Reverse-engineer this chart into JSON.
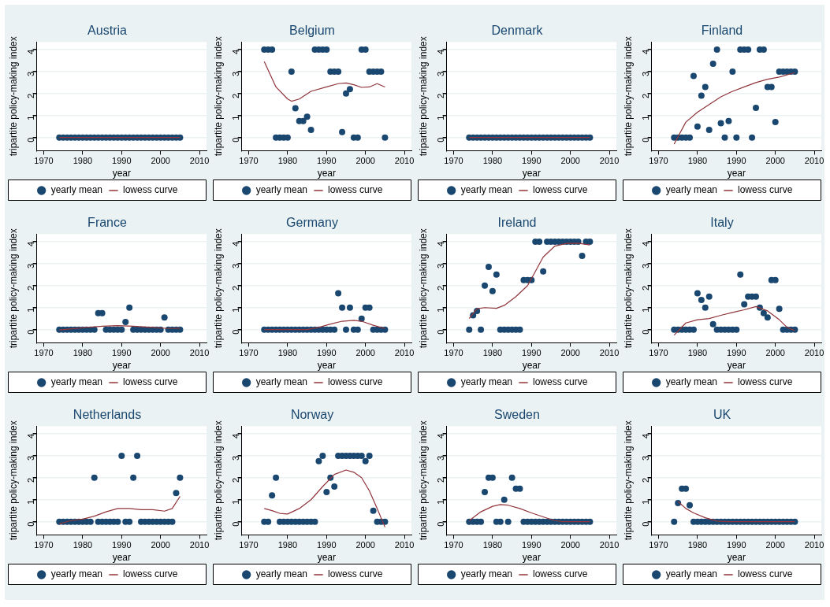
{
  "chart_data": [
    {
      "type": "scatter",
      "title": "Austria",
      "xlabel": "year",
      "ylabel": "tripartite policy-making index",
      "xlim": [
        1968.2,
        2011.8
      ],
      "ylim": [
        -0.6,
        4.35
      ],
      "xticks": [
        1970,
        1980,
        1990,
        2000,
        2010
      ],
      "yticks": [
        0,
        1,
        2,
        3,
        4
      ],
      "grid": "y",
      "legend": "bottom",
      "x": [
        1974,
        1975,
        1976,
        1977,
        1978,
        1979,
        1980,
        1981,
        1982,
        1983,
        1984,
        1985,
        1986,
        1987,
        1988,
        1989,
        1990,
        1991,
        1992,
        1993,
        1994,
        1995,
        1996,
        1997,
        1998,
        1999,
        2000,
        2001,
        2002,
        2003,
        2004,
        2005
      ],
      "series": [
        {
          "name": "yearly mean",
          "type": "scatter",
          "marker": "circle",
          "color": "#1a476f",
          "values": [
            0,
            0,
            0,
            0,
            0,
            0,
            0,
            0,
            0,
            0,
            0,
            0,
            0,
            0,
            0,
            0,
            0,
            0,
            0,
            0,
            0,
            0,
            0,
            0,
            0,
            0,
            0,
            0,
            0,
            0,
            0,
            0
          ]
        },
        {
          "name": "lowess curve",
          "type": "line",
          "marker": "none",
          "color": "#90353b",
          "x": [
            1974,
            2005
          ],
          "values": [
            0,
            0
          ]
        }
      ]
    },
    {
      "type": "scatter",
      "title": "Belgium",
      "xlabel": "year",
      "ylabel": "tripartite policy-making index",
      "xlim": [
        1968.2,
        2011.8
      ],
      "ylim": [
        -0.6,
        4.35
      ],
      "xticks": [
        1970,
        1980,
        1990,
        2000,
        2010
      ],
      "yticks": [
        0,
        1,
        2,
        3,
        4
      ],
      "grid": "y",
      "legend": "bottom",
      "x": [
        1974,
        1975,
        1976,
        1977,
        1978,
        1979,
        1980,
        1981,
        1982,
        1983,
        1984,
        1985,
        1986,
        1987,
        1988,
        1989,
        1990,
        1991,
        1992,
        1993,
        1994,
        1995,
        1996,
        1997,
        1998,
        1999,
        2000,
        2001,
        2002,
        2003,
        2004,
        2005
      ],
      "series": [
        {
          "name": "yearly mean",
          "type": "scatter",
          "marker": "circle",
          "color": "#1a476f",
          "values": [
            4,
            4,
            4,
            0,
            0,
            0,
            0,
            3,
            1.33,
            0.75,
            0.75,
            0.95,
            0.35,
            4,
            4,
            4,
            4,
            3,
            3,
            3,
            0.25,
            2,
            2.2,
            0,
            0,
            4,
            4,
            3,
            3,
            3,
            3,
            0
          ]
        },
        {
          "name": "lowess curve",
          "type": "line",
          "marker": "none",
          "color": "#90353b",
          "x": [
            1974,
            1977,
            1980,
            1981,
            1983,
            1986,
            1990,
            1993,
            1995,
            1997,
            1999,
            2001,
            2003,
            2005
          ],
          "values": [
            3.45,
            2.3,
            1.75,
            1.65,
            1.75,
            2.1,
            2.3,
            2.45,
            2.48,
            2.4,
            2.28,
            2.3,
            2.45,
            2.3
          ]
        }
      ]
    },
    {
      "type": "scatter",
      "title": "Denmark",
      "xlabel": "year",
      "ylabel": "tripartite policy-making index",
      "xlim": [
        1968.2,
        2011.8
      ],
      "ylim": [
        -0.6,
        4.35
      ],
      "xticks": [
        1970,
        1980,
        1990,
        2000,
        2010
      ],
      "yticks": [
        0,
        1,
        2,
        3,
        4
      ],
      "grid": "y",
      "legend": "bottom",
      "x": [
        1974,
        1975,
        1976,
        1977,
        1978,
        1979,
        1980,
        1981,
        1982,
        1983,
        1984,
        1985,
        1986,
        1987,
        1988,
        1989,
        1990,
        1991,
        1992,
        1993,
        1994,
        1995,
        1996,
        1997,
        1998,
        1999,
        2000,
        2001,
        2002,
        2003,
        2004,
        2005
      ],
      "series": [
        {
          "name": "yearly mean",
          "type": "scatter",
          "marker": "circle",
          "color": "#1a476f",
          "values": [
            0,
            0,
            0,
            0,
            0,
            0,
            0,
            0,
            0,
            0,
            0,
            0,
            0,
            0,
            0,
            0,
            0,
            0,
            0,
            0,
            0,
            0,
            0,
            0,
            0,
            0,
            0,
            0,
            0,
            0,
            0,
            0
          ]
        },
        {
          "name": "lowess curve",
          "type": "line",
          "marker": "none",
          "color": "#90353b",
          "x": [
            1974,
            2005
          ],
          "values": [
            0,
            0
          ]
        }
      ]
    },
    {
      "type": "scatter",
      "title": "Finland",
      "xlabel": "year",
      "ylabel": "tripartite policy-making index",
      "xlim": [
        1968.2,
        2011.8
      ],
      "ylim": [
        -0.6,
        4.35
      ],
      "xticks": [
        1970,
        1980,
        1990,
        2000,
        2010
      ],
      "yticks": [
        0,
        1,
        2,
        3,
        4
      ],
      "grid": "y",
      "legend": "bottom",
      "x": [
        1974,
        1975,
        1976,
        1977,
        1978,
        1979,
        1980,
        1981,
        1982,
        1983,
        1984,
        1985,
        1986,
        1987,
        1988,
        1989,
        1990,
        1991,
        1992,
        1993,
        1994,
        1995,
        1996,
        1997,
        1998,
        1999,
        2000,
        2001,
        2002,
        2003,
        2004,
        2005
      ],
      "series": [
        {
          "name": "yearly mean",
          "type": "scatter",
          "marker": "circle",
          "color": "#1a476f",
          "values": [
            0,
            0,
            0,
            0,
            0,
            2.8,
            0.5,
            1.9,
            2.3,
            0.35,
            3.35,
            4,
            0.65,
            0,
            0.75,
            3,
            0,
            4,
            4,
            4,
            0,
            1.35,
            4,
            4,
            2.3,
            2.3,
            0.7,
            3,
            3,
            3,
            3,
            3
          ]
        },
        {
          "name": "lowess curve",
          "type": "line",
          "marker": "none",
          "color": "#90353b",
          "x": [
            1974,
            1977,
            1980,
            1983,
            1986,
            1989,
            1992,
            1995,
            1998,
            2001,
            2005
          ],
          "values": [
            -0.3,
            0.7,
            1.15,
            1.5,
            1.85,
            2.1,
            2.3,
            2.5,
            2.65,
            2.75,
            2.95
          ]
        }
      ]
    },
    {
      "type": "scatter",
      "title": "France",
      "xlabel": "year",
      "ylabel": "tripartite policy-making index",
      "xlim": [
        1968.2,
        2011.8
      ],
      "ylim": [
        -0.6,
        4.35
      ],
      "xticks": [
        1970,
        1980,
        1990,
        2000,
        2010
      ],
      "yticks": [
        0,
        1,
        2,
        3,
        4
      ],
      "grid": "y",
      "legend": "bottom",
      "x": [
        1974,
        1975,
        1976,
        1977,
        1978,
        1979,
        1980,
        1981,
        1982,
        1983,
        1984,
        1985,
        1986,
        1987,
        1988,
        1989,
        1990,
        1991,
        1992,
        1993,
        1994,
        1995,
        1996,
        1997,
        1998,
        1999,
        2000,
        2001,
        2002,
        2003,
        2004,
        2005
      ],
      "series": [
        {
          "name": "yearly mean",
          "type": "scatter",
          "marker": "circle",
          "color": "#1a476f",
          "values": [
            0,
            0,
            0,
            0,
            0,
            0,
            0,
            0,
            0,
            0,
            0.75,
            0.75,
            0,
            0,
            0,
            0,
            0,
            0.35,
            1,
            0,
            0,
            0,
            0,
            0,
            0,
            0,
            0,
            0.55,
            0,
            0,
            0,
            0
          ]
        },
        {
          "name": "lowess curve",
          "type": "line",
          "marker": "none",
          "color": "#90353b",
          "x": [
            1974,
            1980,
            1985,
            1989,
            1993,
            1998,
            2002,
            2005
          ],
          "values": [
            -0.02,
            0.08,
            0.15,
            0.18,
            0.15,
            0.1,
            0.05,
            0.06
          ]
        }
      ]
    },
    {
      "type": "scatter",
      "title": "Germany",
      "xlabel": "year",
      "ylabel": "tripartite policy-making index",
      "xlim": [
        1968.2,
        2011.8
      ],
      "ylim": [
        -0.6,
        4.35
      ],
      "xticks": [
        1970,
        1980,
        1990,
        2000,
        2010
      ],
      "yticks": [
        0,
        1,
        2,
        3,
        4
      ],
      "grid": "y",
      "legend": "bottom",
      "x": [
        1974,
        1975,
        1976,
        1977,
        1978,
        1979,
        1980,
        1981,
        1982,
        1983,
        1984,
        1985,
        1986,
        1987,
        1988,
        1989,
        1990,
        1991,
        1992,
        1993,
        1994,
        1995,
        1996,
        1997,
        1998,
        1999,
        2000,
        2001,
        2002,
        2003,
        2004,
        2005
      ],
      "series": [
        {
          "name": "yearly mean",
          "type": "scatter",
          "marker": "circle",
          "color": "#1a476f",
          "values": [
            0,
            0,
            0,
            0,
            0,
            0,
            0,
            0,
            0,
            0,
            0,
            0,
            0,
            0,
            0,
            0,
            0,
            0,
            0,
            1.65,
            1,
            0,
            1,
            0,
            0,
            0.5,
            1,
            1,
            0,
            0,
            0,
            0
          ]
        },
        {
          "name": "lowess curve",
          "type": "line",
          "marker": "none",
          "color": "#90353b",
          "x": [
            1974,
            1985,
            1988,
            1991,
            1994,
            1997,
            1999,
            2002,
            2005
          ],
          "values": [
            0,
            0,
            0.1,
            0.25,
            0.38,
            0.42,
            0.38,
            0.2,
            0.05
          ]
        }
      ]
    },
    {
      "type": "scatter",
      "title": "Ireland",
      "xlabel": "year",
      "ylabel": "tripartite policy-making index",
      "xlim": [
        1968.2,
        2011.8
      ],
      "ylim": [
        -0.6,
        4.35
      ],
      "xticks": [
        1970,
        1980,
        1990,
        2000,
        2010
      ],
      "yticks": [
        0,
        1,
        2,
        3,
        4
      ],
      "grid": "y",
      "legend": "bottom",
      "x": [
        1974,
        1975,
        1976,
        1977,
        1978,
        1979,
        1980,
        1981,
        1982,
        1983,
        1984,
        1985,
        1986,
        1987,
        1988,
        1989,
        1990,
        1991,
        1992,
        1993,
        1994,
        1995,
        1996,
        1997,
        1998,
        1999,
        2000,
        2001,
        2002,
        2003,
        2004,
        2005
      ],
      "series": [
        {
          "name": "yearly mean",
          "type": "scatter",
          "marker": "circle",
          "color": "#1a476f",
          "values": [
            0,
            0.65,
            0.85,
            0,
            2,
            2.85,
            1.75,
            2.5,
            0,
            0,
            0,
            0,
            0,
            0,
            2.25,
            2.25,
            2.25,
            4,
            4,
            2.65,
            4,
            4,
            4,
            4,
            4,
            4,
            4,
            4,
            4,
            3.35,
            4,
            4
          ]
        },
        {
          "name": "lowess curve",
          "type": "line",
          "marker": "none",
          "color": "#90353b",
          "x": [
            1974,
            1976,
            1978,
            1981,
            1983,
            1986,
            1989,
            1991,
            1993,
            1996,
            1999,
            2002,
            2005
          ],
          "values": [
            0.5,
            0.95,
            1,
            0.97,
            1.1,
            1.5,
            2,
            2.65,
            3.3,
            3.8,
            3.92,
            3.93,
            3.85
          ]
        }
      ]
    },
    {
      "type": "scatter",
      "title": "Italy",
      "xlabel": "year",
      "ylabel": "tripartite policy-making index",
      "xlim": [
        1968.2,
        2011.8
      ],
      "ylim": [
        -0.6,
        4.35
      ],
      "xticks": [
        1970,
        1980,
        1990,
        2000,
        2010
      ],
      "yticks": [
        0,
        1,
        2,
        3,
        4
      ],
      "grid": "y",
      "legend": "bottom",
      "x": [
        1974,
        1975,
        1976,
        1977,
        1978,
        1979,
        1980,
        1981,
        1982,
        1983,
        1984,
        1985,
        1986,
        1987,
        1988,
        1989,
        1990,
        1991,
        1992,
        1993,
        1994,
        1995,
        1996,
        1997,
        1998,
        1999,
        2000,
        2001,
        2002,
        2003,
        2004,
        2005
      ],
      "series": [
        {
          "name": "yearly mean",
          "type": "scatter",
          "marker": "circle",
          "color": "#1a476f",
          "values": [
            0,
            0,
            0,
            0,
            0,
            0,
            1.65,
            1.35,
            1,
            1.5,
            0.25,
            0,
            0,
            0,
            0,
            0,
            0,
            2.5,
            1.15,
            1.5,
            1.5,
            1.5,
            1,
            0.75,
            0.55,
            2.25,
            2.25,
            0.95,
            0,
            0,
            0,
            0
          ]
        },
        {
          "name": "lowess curve",
          "type": "line",
          "marker": "none",
          "color": "#90353b",
          "x": [
            1974,
            1977,
            1980,
            1983,
            1986,
            1989,
            1992,
            1995,
            1998,
            2001,
            2003,
            2005
          ],
          "values": [
            -0.25,
            0.3,
            0.45,
            0.5,
            0.65,
            0.78,
            0.9,
            1.05,
            0.85,
            0.45,
            0.1,
            -0.05
          ]
        }
      ]
    },
    {
      "type": "scatter",
      "title": "Netherlands",
      "xlabel": "year",
      "ylabel": "tripartite policy-making index",
      "xlim": [
        1968.2,
        2011.8
      ],
      "ylim": [
        -0.6,
        4.35
      ],
      "xticks": [
        1970,
        1980,
        1990,
        2000,
        2010
      ],
      "yticks": [
        0,
        1,
        2,
        3,
        4
      ],
      "grid": "y",
      "legend": "bottom",
      "x": [
        1974,
        1975,
        1976,
        1977,
        1978,
        1979,
        1980,
        1981,
        1982,
        1983,
        1984,
        1985,
        1986,
        1987,
        1988,
        1989,
        1990,
        1991,
        1992,
        1993,
        1994,
        1995,
        1996,
        1997,
        1998,
        1999,
        2000,
        2001,
        2002,
        2003,
        2004,
        2005
      ],
      "series": [
        {
          "name": "yearly mean",
          "type": "scatter",
          "marker": "circle",
          "color": "#1a476f",
          "values": [
            0,
            0,
            0,
            0,
            0,
            0,
            0,
            0,
            0,
            2,
            0,
            0,
            0,
            0,
            0,
            0,
            3,
            0,
            0,
            2,
            3,
            0,
            0,
            0,
            0,
            0,
            0,
            0,
            0,
            0,
            1.3,
            2
          ]
        },
        {
          "name": "lowess curve",
          "type": "line",
          "marker": "none",
          "color": "#90353b",
          "x": [
            1974,
            1977,
            1980,
            1983,
            1986,
            1989,
            1992,
            1995,
            1998,
            2001,
            2003,
            2005
          ],
          "values": [
            -0.1,
            0.05,
            0.12,
            0.25,
            0.45,
            0.6,
            0.6,
            0.55,
            0.55,
            0.48,
            0.6,
            1.15
          ]
        }
      ]
    },
    {
      "type": "scatter",
      "title": "Norway",
      "xlabel": "year",
      "ylabel": "tripartite policy-making index",
      "xlim": [
        1968.2,
        2011.8
      ],
      "ylim": [
        -0.6,
        4.35
      ],
      "xticks": [
        1970,
        1980,
        1990,
        2000,
        2010
      ],
      "yticks": [
        0,
        1,
        2,
        3,
        4
      ],
      "grid": "y",
      "legend": "bottom",
      "x": [
        1974,
        1975,
        1976,
        1977,
        1978,
        1979,
        1980,
        1981,
        1982,
        1983,
        1984,
        1985,
        1986,
        1987,
        1988,
        1989,
        1990,
        1991,
        1992,
        1993,
        1994,
        1995,
        1996,
        1997,
        1998,
        1999,
        2000,
        2001,
        2002,
        2003,
        2004,
        2005
      ],
      "series": [
        {
          "name": "yearly mean",
          "type": "scatter",
          "marker": "circle",
          "color": "#1a476f",
          "values": [
            0,
            0,
            1.2,
            2,
            0,
            0,
            0,
            0,
            0,
            0,
            0,
            0,
            0,
            0,
            2.75,
            3,
            1.35,
            2,
            1.6,
            3,
            3,
            3,
            3,
            3,
            3,
            3,
            2.75,
            3,
            0.5,
            0,
            0,
            0
          ]
        },
        {
          "name": "lowess curve",
          "type": "line",
          "marker": "none",
          "color": "#90353b",
          "x": [
            1974,
            1976,
            1978,
            1980,
            1983,
            1986,
            1989,
            1992,
            1995,
            1997,
            1999,
            2001,
            2003,
            2005
          ],
          "values": [
            0.6,
            0.5,
            0.38,
            0.35,
            0.6,
            1,
            1.6,
            2.15,
            2.35,
            2.25,
            2,
            1.4,
            0.6,
            -0.25
          ]
        }
      ]
    },
    {
      "type": "scatter",
      "title": "Sweden",
      "xlabel": "year",
      "ylabel": "tripartite policy-making index",
      "xlim": [
        1968.2,
        2011.8
      ],
      "ylim": [
        -0.6,
        4.35
      ],
      "xticks": [
        1970,
        1980,
        1990,
        2000,
        2010
      ],
      "yticks": [
        0,
        1,
        2,
        3,
        4
      ],
      "grid": "y",
      "legend": "bottom",
      "x": [
        1974,
        1975,
        1976,
        1977,
        1978,
        1979,
        1980,
        1981,
        1982,
        1983,
        1984,
        1985,
        1986,
        1987,
        1988,
        1989,
        1990,
        1991,
        1992,
        1993,
        1994,
        1995,
        1996,
        1997,
        1998,
        1999,
        2000,
        2001,
        2002,
        2003,
        2004,
        2005
      ],
      "series": [
        {
          "name": "yearly mean",
          "type": "scatter",
          "marker": "circle",
          "color": "#1a476f",
          "values": [
            0,
            0,
            0,
            0,
            1.35,
            2,
            2,
            0,
            0,
            1,
            0,
            2,
            1.5,
            1.5,
            0,
            0,
            0,
            0,
            0,
            0,
            0,
            0,
            0,
            0,
            0,
            0,
            0,
            0,
            0,
            0,
            0,
            0
          ]
        },
        {
          "name": "lowess curve",
          "type": "line",
          "marker": "none",
          "color": "#90353b",
          "x": [
            1974,
            1977,
            1980,
            1982,
            1984,
            1987,
            1990,
            1993,
            1996,
            1998,
            2005
          ],
          "values": [
            0.05,
            0.45,
            0.7,
            0.78,
            0.75,
            0.6,
            0.4,
            0.22,
            0.05,
            0,
            0
          ]
        }
      ]
    },
    {
      "type": "scatter",
      "title": "UK",
      "xlabel": "year",
      "ylabel": "tripartite policy-making index",
      "xlim": [
        1968.2,
        2011.8
      ],
      "ylim": [
        -0.6,
        4.35
      ],
      "xticks": [
        1970,
        1980,
        1990,
        2000,
        2010
      ],
      "yticks": [
        0,
        1,
        2,
        3,
        4
      ],
      "grid": "y",
      "legend": "bottom",
      "x": [
        1974,
        1975,
        1976,
        1977,
        1978,
        1979,
        1980,
        1981,
        1982,
        1983,
        1984,
        1985,
        1986,
        1987,
        1988,
        1989,
        1990,
        1991,
        1992,
        1993,
        1994,
        1995,
        1996,
        1997,
        1998,
        1999,
        2000,
        2001,
        2002,
        2003,
        2004,
        2005
      ],
      "series": [
        {
          "name": "yearly mean",
          "type": "scatter",
          "marker": "circle",
          "color": "#1a476f",
          "values": [
            0,
            0.85,
            1.5,
            1.5,
            0.75,
            0,
            0,
            0,
            0,
            0,
            0,
            0,
            0,
            0,
            0,
            0,
            0,
            0,
            0,
            0,
            0,
            0,
            0,
            0,
            0,
            0,
            0,
            0,
            0,
            0,
            0,
            0
          ]
        },
        {
          "name": "lowess curve",
          "type": "line",
          "marker": "none",
          "color": "#90353b",
          "x": [
            1975,
            1977,
            1979,
            1982,
            1985,
            1988,
            2005
          ],
          "values": [
            0.92,
            0.6,
            0.4,
            0.18,
            0.03,
            0,
            0
          ]
        }
      ]
    }
  ]
}
